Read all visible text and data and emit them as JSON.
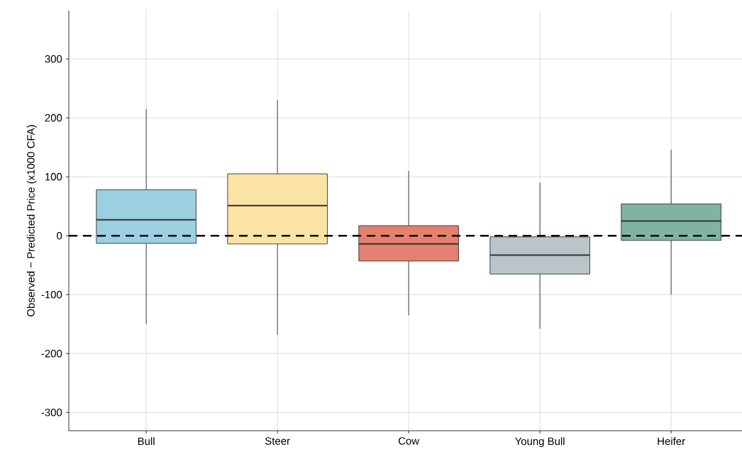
{
  "chart_data": {
    "type": "box",
    "ylabel": "Observed − Predicted Price (x1000 CFA)",
    "categories": [
      "Bull",
      "Steer",
      "Cow",
      "Young Bull",
      "Heifer"
    ],
    "colors": [
      "#9ccfe0",
      "#fbe3a6",
      "#e3806f",
      "#b9c5c9",
      "#80b3a2"
    ],
    "boxes": [
      {
        "low": -150,
        "q1": -13,
        "median": 27,
        "q3": 78,
        "high": 215
      },
      {
        "low": -168,
        "q1": -14,
        "median": 51,
        "q3": 105,
        "high": 230
      },
      {
        "low": -135,
        "q1": -43,
        "median": -14,
        "q3": 17,
        "high": 110
      },
      {
        "low": -158,
        "q1": -65,
        "median": -33,
        "q3": -2,
        "high": 90
      },
      {
        "low": -100,
        "q1": -8,
        "median": 25,
        "q3": 54,
        "high": 146
      }
    ],
    "ylim": [
      -331,
      382
    ],
    "yticks": [
      -300,
      -200,
      -100,
      0,
      100,
      200,
      300
    ],
    "grid": true,
    "ref_lines": [
      {
        "axis": "y",
        "value": 0,
        "line_style": "dashed",
        "color": "#000000"
      }
    ]
  }
}
